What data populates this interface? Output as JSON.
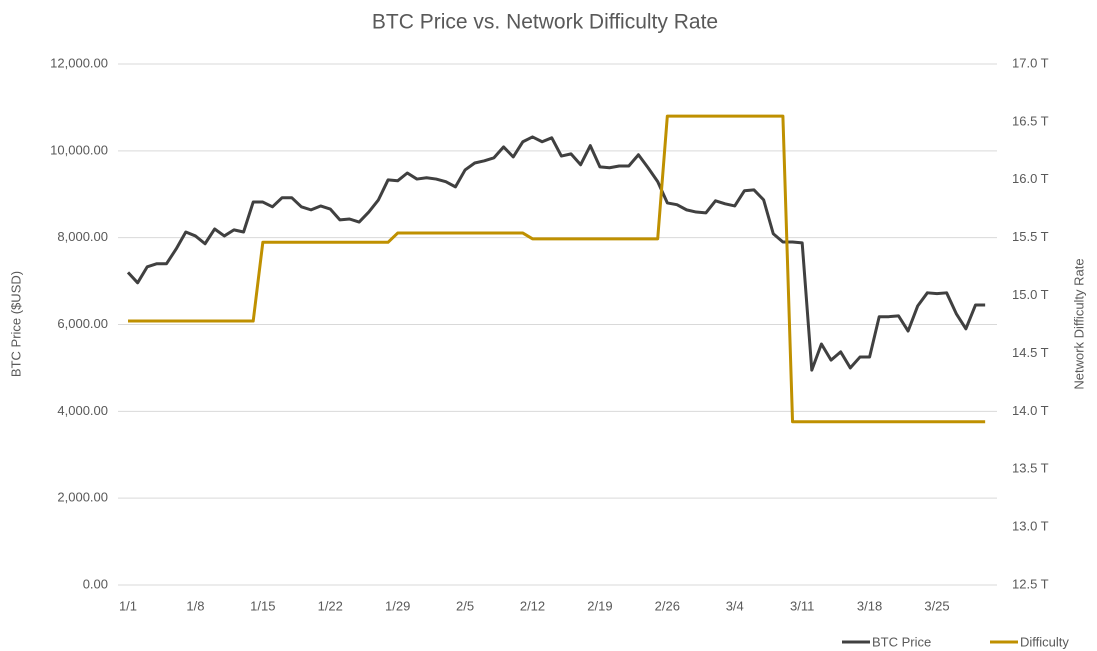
{
  "chart_data": {
    "type": "line",
    "title": "BTC Price vs. Network Difficulty Rate",
    "y_label": "BTC Price ($USD)",
    "y2_label": "Network Difficulty Rate",
    "categories": [
      "1/1",
      null,
      null,
      null,
      null,
      null,
      null,
      "1/8",
      null,
      null,
      null,
      null,
      null,
      null,
      "1/15",
      null,
      null,
      null,
      null,
      null,
      null,
      "1/22",
      null,
      null,
      null,
      null,
      null,
      null,
      "1/29",
      null,
      null,
      null,
      null,
      null,
      null,
      "2/5",
      null,
      null,
      null,
      null,
      null,
      null,
      "2/12",
      null,
      null,
      null,
      null,
      null,
      null,
      "2/19",
      null,
      null,
      null,
      null,
      null,
      null,
      "2/26",
      null,
      null,
      null,
      null,
      null,
      null,
      "3/4",
      null,
      null,
      null,
      null,
      null,
      null,
      "3/11",
      null,
      null,
      null,
      null,
      null,
      null,
      "3/18",
      null,
      null,
      null,
      null,
      null,
      null,
      "3/25",
      null,
      null,
      null,
      null,
      null
    ],
    "series": [
      {
        "name": "BTC Price",
        "color": "#404040",
        "axis": "y",
        "values": [
          7200,
          6960,
          7330,
          7400,
          7400,
          7740,
          8130,
          8040,
          7860,
          8200,
          8040,
          8180,
          8130,
          8820,
          8820,
          8710,
          8920,
          8920,
          8710,
          8640,
          8730,
          8660,
          8410,
          8430,
          8360,
          8590,
          8870,
          9330,
          9310,
          9490,
          9350,
          9380,
          9350,
          9290,
          9170,
          9560,
          9720,
          9770,
          9840,
          10090,
          9860,
          10210,
          10320,
          10210,
          10300,
          9880,
          9930,
          9680,
          10120,
          9630,
          9610,
          9650,
          9650,
          9910,
          9610,
          9290,
          8800,
          8760,
          8640,
          8590,
          8570,
          8850,
          8780,
          8730,
          9080,
          9100,
          8870,
          8090,
          7900,
          7900,
          7880,
          4950,
          5550,
          5180,
          5370,
          5000,
          5250,
          5250,
          6180,
          6180,
          6200,
          5850,
          6430,
          6730,
          6710,
          6730,
          6250,
          5900,
          6450,
          6450
        ]
      },
      {
        "name": "Difficulty",
        "color": "#bf9000",
        "axis": "y2",
        "values": [
          14.78,
          14.78,
          14.78,
          14.78,
          14.78,
          14.78,
          14.78,
          14.78,
          14.78,
          14.78,
          14.78,
          14.78,
          14.78,
          14.78,
          15.46,
          15.46,
          15.46,
          15.46,
          15.46,
          15.46,
          15.46,
          15.46,
          15.46,
          15.46,
          15.46,
          15.46,
          15.46,
          15.46,
          15.54,
          15.54,
          15.54,
          15.54,
          15.54,
          15.54,
          15.54,
          15.54,
          15.54,
          15.54,
          15.54,
          15.54,
          15.54,
          15.54,
          15.49,
          15.49,
          15.49,
          15.49,
          15.49,
          15.49,
          15.49,
          15.49,
          15.49,
          15.49,
          15.49,
          15.49,
          15.49,
          15.49,
          16.55,
          16.55,
          16.55,
          16.55,
          16.55,
          16.55,
          16.55,
          16.55,
          16.55,
          16.55,
          16.55,
          16.55,
          16.55,
          13.91,
          13.91,
          13.91,
          13.91,
          13.91,
          13.91,
          13.91,
          13.91,
          13.91,
          13.91,
          13.91,
          13.91,
          13.91,
          13.91,
          13.91,
          13.91,
          13.91,
          13.91,
          13.91,
          13.91,
          13.91
        ]
      }
    ],
    "ylim": [
      0,
      12000
    ],
    "yticks": [
      {
        "value": 0,
        "label": "0.00"
      },
      {
        "value": 2000,
        "label": "2,000.00"
      },
      {
        "value": 4000,
        "label": "4,000.00"
      },
      {
        "value": 6000,
        "label": "6,000.00"
      },
      {
        "value": 8000,
        "label": "8,000.00"
      },
      {
        "value": 10000,
        "label": "10,000.00"
      },
      {
        "value": 12000,
        "label": "12,000.00"
      }
    ],
    "y2lim": [
      12.5,
      17.0
    ],
    "y2ticks": [
      {
        "value": 12.5,
        "label": "12.5 T"
      },
      {
        "value": 13.0,
        "label": "13.0 T"
      },
      {
        "value": 13.5,
        "label": "13.5 T"
      },
      {
        "value": 14.0,
        "label": "14.0 T"
      },
      {
        "value": 14.5,
        "label": "14.5 T"
      },
      {
        "value": 15.0,
        "label": "15.0 T"
      },
      {
        "value": 15.5,
        "label": "15.5 T"
      },
      {
        "value": 16.0,
        "label": "16.0 T"
      },
      {
        "value": 16.5,
        "label": "16.5 T"
      },
      {
        "value": 17.0,
        "label": "17.0 T"
      }
    ],
    "grid": true,
    "legend": "bottom-right"
  }
}
